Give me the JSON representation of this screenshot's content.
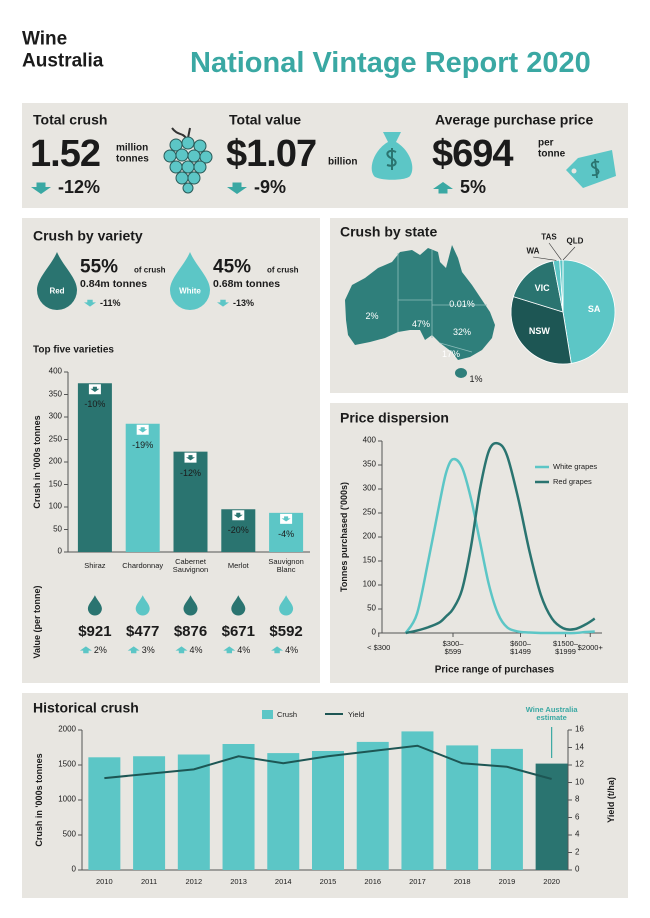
{
  "header": {
    "brand": [
      "Wine",
      "Australia"
    ],
    "title": "National Vintage Report 2020"
  },
  "kpis": [
    {
      "label": "Total crush",
      "value": "1.52",
      "unit": [
        "million",
        "tonnes"
      ],
      "change": "-12%"
    },
    {
      "label": "Total value",
      "value": "$1.07",
      "unit": [
        "billion"
      ],
      "change": "-9%"
    },
    {
      "label": "Average purchase price",
      "value": "$694",
      "unit": [
        "per",
        "tonne"
      ],
      "change": "5%"
    }
  ],
  "variety": {
    "title": "Crush by variety",
    "items": [
      {
        "name": "Red",
        "share": "55%",
        "share_note": "of crush",
        "tonnes": "0.84m tonnes",
        "change": "-11%",
        "color": "#2a7470"
      },
      {
        "name": "White",
        "share": "45%",
        "share_note": "of crush",
        "tonnes": "0.68m tonnes",
        "change": "-13%",
        "color": "#5cc6c6"
      }
    ]
  },
  "chart_data": [
    {
      "type": "bar",
      "title": "Top five varieties",
      "ylabel": "Crush in '000s tonnes",
      "categories": [
        "Shiraz",
        "Chardonnay",
        "Cabernet Sauvignon",
        "Merlot",
        "Sauvignon Blanc"
      ],
      "values": [
        375,
        285,
        223,
        95,
        87
      ],
      "colors": [
        "#2a7470",
        "#5cc6c6",
        "#2a7470",
        "#2a7470",
        "#5cc6c6"
      ],
      "changes": [
        "-10%",
        "-19%",
        "-12%",
        "-20%",
        "-4%"
      ],
      "ylim": [
        0,
        400
      ],
      "yticks": [
        0,
        50,
        100,
        150,
        200,
        250,
        300,
        350,
        400
      ],
      "price_label": "Value (per tonne)",
      "prices": [
        "$921",
        "$477",
        "$876",
        "$671",
        "$592"
      ],
      "price_changes": [
        "2%",
        "3%",
        "4%",
        "4%",
        "4%"
      ]
    },
    {
      "type": "pie",
      "title": "Crush by state",
      "categories": [
        "SA",
        "NSW",
        "VIC",
        "WA",
        "TAS",
        "QLD"
      ],
      "values": [
        47,
        32,
        17,
        2,
        1,
        0.01
      ],
      "value_labels": [
        "47%",
        "32%",
        "17%",
        "2%",
        "1%",
        "0.01%"
      ],
      "colors": [
        "#5cc6c6",
        "#1d5654",
        "#2a7470",
        "#5cc6c6",
        "#5cc6c6",
        "#5cc6c6"
      ]
    },
    {
      "type": "line",
      "title": "Price dispersion",
      "xlabel": "Price range of purchases",
      "ylabel": "Tonnes purchased ('000s)",
      "x": [
        15,
        20,
        25,
        30,
        33,
        36,
        40,
        44,
        48,
        52,
        56,
        60,
        65,
        70,
        75,
        80,
        85,
        90,
        95,
        99
      ],
      "series": [
        {
          "name": "White grapes",
          "color": "#5cc6c6",
          "values": [
            0,
            40,
            150,
            270,
            335,
            362,
            345,
            280,
            190,
            100,
            40,
            12,
            3,
            1,
            0,
            0,
            0,
            0,
            2,
            3
          ]
        },
        {
          "name": "Red grapes",
          "color": "#2a7470",
          "values": [
            0,
            5,
            12,
            22,
            35,
            50,
            90,
            180,
            300,
            380,
            395,
            370,
            280,
            170,
            80,
            30,
            10,
            8,
            18,
            30
          ]
        }
      ],
      "xlim": [
        0,
        100
      ],
      "xticks": [
        {
          "value": 3,
          "label": "< $300"
        },
        {
          "value": 36,
          "label": "$300–$599"
        },
        {
          "value": 66,
          "label": "$600–$1499"
        },
        {
          "value": 86,
          "label": "$1500–$1999"
        },
        {
          "value": 97,
          "label": "$2000+"
        }
      ],
      "ylim": [
        0,
        400
      ],
      "yticks": [
        0,
        50,
        100,
        150,
        200,
        250,
        300,
        350,
        400
      ],
      "legend": "upper right"
    },
    {
      "type": "combo",
      "title": "Historical crush",
      "categories": [
        "2010",
        "2011",
        "2012",
        "2013",
        "2014",
        "2015",
        "2016",
        "2017",
        "2018",
        "2019",
        "2020"
      ],
      "series": [
        {
          "name": "Crush",
          "type": "bar",
          "color": "#5cc6c6",
          "colors": [
            "#5cc6c6",
            "#5cc6c6",
            "#5cc6c6",
            "#5cc6c6",
            "#5cc6c6",
            "#5cc6c6",
            "#5cc6c6",
            "#5cc6c6",
            "#5cc6c6",
            "#5cc6c6",
            "#2a7470"
          ],
          "values": [
            1610,
            1625,
            1650,
            1800,
            1670,
            1700,
            1830,
            1980,
            1780,
            1730,
            1520
          ]
        },
        {
          "name": "Yield",
          "type": "line",
          "color": "#1d5654",
          "axis": "y2",
          "values": [
            10.5,
            11,
            11.5,
            13,
            12.2,
            13,
            13.6,
            14.2,
            12.2,
            11.8,
            10.4
          ]
        }
      ],
      "ylabel": "Crush in '000s tonnes",
      "y2label": "Yield (t/ha)",
      "ylim": [
        0,
        2000
      ],
      "yticks": [
        0,
        500,
        1000,
        1500,
        2000
      ],
      "y2lim": [
        0,
        16
      ],
      "y2ticks": [
        0,
        2,
        4,
        6,
        8,
        10,
        12,
        14,
        16
      ],
      "annotation": "Wine Australia estimate",
      "legend": "top"
    }
  ]
}
